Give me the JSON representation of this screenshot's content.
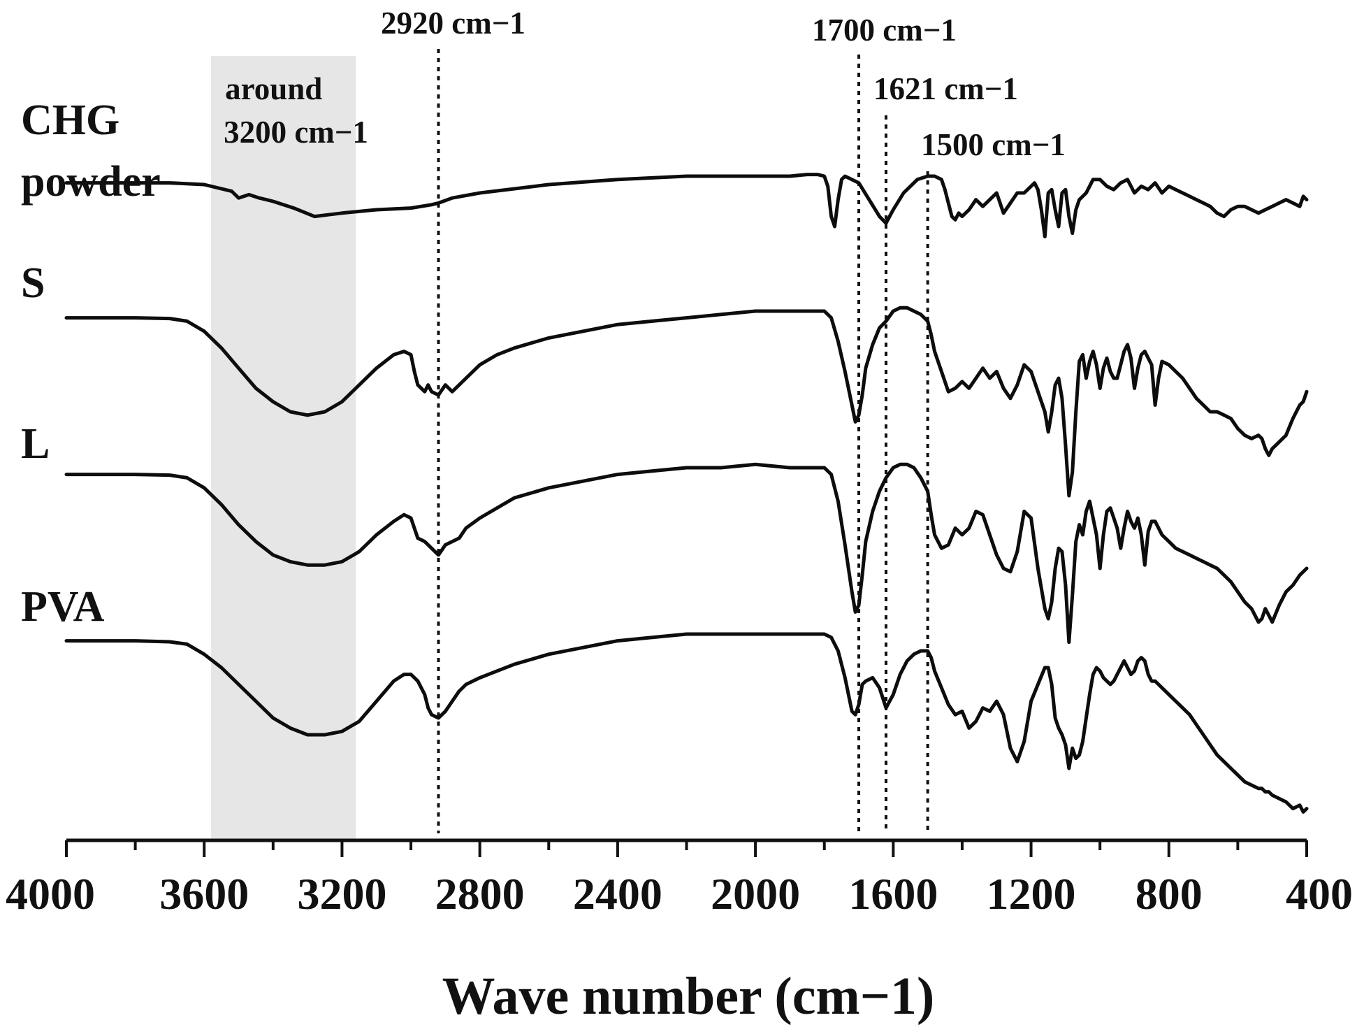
{
  "chart_data": {
    "type": "line",
    "title": "",
    "xlabel": "Wave number (cm−1)",
    "ylabel": "",
    "xlim": [
      4000,
      400
    ],
    "x_reversed": true,
    "xticks": [
      4000,
      3600,
      3200,
      2800,
      2400,
      2000,
      1600,
      1200,
      800,
      400
    ],
    "grid": false,
    "legend": "none (series labelled at left)",
    "highlight_band": {
      "from": 3580,
      "to": 3160,
      "label_line1": "around",
      "label_line2": "3200 cm−1"
    },
    "markers": [
      {
        "x": 2920,
        "label": "2920 cm−1"
      },
      {
        "x": 1700,
        "label": "1700 cm−1"
      },
      {
        "x": 1621,
        "label": "1621 cm−1"
      },
      {
        "x": 1500,
        "label": "1500 cm−1"
      }
    ],
    "series": [
      {
        "name": "CHG powder",
        "label_line1": "CHG",
        "label_line2": "powder",
        "x": [
          4000,
          3800,
          3700,
          3600,
          3520,
          3500,
          3470,
          3440,
          3400,
          3340,
          3280,
          3240,
          3200,
          3150,
          3100,
          3000,
          2940,
          2920,
          2880,
          2800,
          2600,
          2400,
          2200,
          2000,
          1900,
          1850,
          1820,
          1800,
          1790,
          1780,
          1770,
          1760,
          1750,
          1740,
          1700,
          1670,
          1640,
          1621,
          1600,
          1570,
          1530,
          1500,
          1480,
          1460,
          1450,
          1440,
          1430,
          1420,
          1410,
          1400,
          1380,
          1360,
          1340,
          1320,
          1300,
          1280,
          1260,
          1240,
          1220,
          1200,
          1190,
          1180,
          1170,
          1160,
          1150,
          1140,
          1130,
          1120,
          1110,
          1100,
          1090,
          1080,
          1070,
          1060,
          1040,
          1020,
          1000,
          980,
          960,
          940,
          920,
          900,
          880,
          860,
          840,
          820,
          800,
          780,
          760,
          740,
          720,
          700,
          680,
          660,
          640,
          620,
          600,
          580,
          560,
          540,
          520,
          500,
          480,
          460,
          440,
          420,
          410,
          400
        ],
        "y": [
          0.08,
          0.08,
          0.08,
          0.075,
          0.055,
          0.035,
          0.045,
          0.035,
          0.025,
          0.005,
          -0.02,
          -0.015,
          -0.01,
          -0.005,
          0.0,
          0.005,
          0.015,
          0.02,
          0.035,
          0.05,
          0.075,
          0.09,
          0.1,
          0.1,
          0.1,
          0.105,
          0.105,
          0.1,
          0.07,
          -0.02,
          -0.05,
          0.03,
          0.09,
          0.1,
          0.08,
          0.03,
          -0.02,
          -0.04,
          0.0,
          0.05,
          0.09,
          0.1,
          0.1,
          0.09,
          0.06,
          0.02,
          -0.02,
          -0.03,
          -0.01,
          -0.02,
          0.0,
          0.03,
          0.01,
          0.03,
          0.05,
          -0.01,
          0.02,
          0.05,
          0.05,
          0.07,
          0.08,
          0.06,
          0.0,
          -0.08,
          0.05,
          0.06,
          0.0,
          -0.05,
          0.05,
          0.06,
          -0.02,
          -0.07,
          0.0,
          0.03,
          0.05,
          0.09,
          0.09,
          0.07,
          0.06,
          0.08,
          0.09,
          0.05,
          0.07,
          0.06,
          0.08,
          0.05,
          0.07,
          0.06,
          0.05,
          0.04,
          0.03,
          0.02,
          0.01,
          -0.01,
          -0.02,
          0.0,
          0.01,
          0.01,
          0.0,
          -0.01,
          0.0,
          0.01,
          0.02,
          0.03,
          0.02,
          0.01,
          0.04,
          0.03
        ]
      },
      {
        "name": "S",
        "label_line1": "S",
        "label_line2": "",
        "x": [
          4000,
          3800,
          3700,
          3650,
          3600,
          3550,
          3500,
          3450,
          3400,
          3350,
          3300,
          3250,
          3200,
          3150,
          3100,
          3050,
          3020,
          3000,
          2990,
          2980,
          2960,
          2950,
          2940,
          2920,
          2900,
          2880,
          2860,
          2840,
          2800,
          2750,
          2700,
          2600,
          2500,
          2400,
          2300,
          2200,
          2100,
          2000,
          1900,
          1850,
          1800,
          1780,
          1760,
          1740,
          1720,
          1710,
          1700,
          1690,
          1680,
          1660,
          1640,
          1621,
          1600,
          1580,
          1560,
          1540,
          1520,
          1500,
          1490,
          1480,
          1460,
          1440,
          1420,
          1400,
          1380,
          1360,
          1340,
          1320,
          1300,
          1280,
          1260,
          1240,
          1220,
          1200,
          1180,
          1160,
          1150,
          1140,
          1130,
          1120,
          1110,
          1100,
          1090,
          1080,
          1070,
          1060,
          1050,
          1040,
          1030,
          1020,
          1010,
          1000,
          990,
          980,
          970,
          960,
          950,
          940,
          930,
          920,
          910,
          900,
          890,
          880,
          870,
          860,
          850,
          840,
          830,
          820,
          800,
          780,
          760,
          740,
          720,
          700,
          680,
          660,
          640,
          620,
          600,
          580,
          560,
          540,
          530,
          520,
          510,
          500,
          480,
          460,
          440,
          420,
          410,
          400
        ],
        "y": [
          0.08,
          0.08,
          0.078,
          0.07,
          0.04,
          -0.01,
          -0.07,
          -0.13,
          -0.17,
          -0.2,
          -0.21,
          -0.2,
          -0.17,
          -0.12,
          -0.07,
          -0.03,
          -0.02,
          -0.03,
          -0.08,
          -0.12,
          -0.14,
          -0.12,
          -0.14,
          -0.15,
          -0.12,
          -0.14,
          -0.12,
          -0.1,
          -0.06,
          -0.03,
          -0.01,
          0.02,
          0.04,
          0.06,
          0.07,
          0.08,
          0.09,
          0.1,
          0.1,
          0.1,
          0.1,
          0.08,
          0.01,
          -0.08,
          -0.18,
          -0.23,
          -0.21,
          -0.15,
          -0.07,
          0.0,
          0.05,
          0.07,
          0.1,
          0.11,
          0.11,
          0.1,
          0.09,
          0.07,
          0.03,
          -0.02,
          -0.08,
          -0.14,
          -0.13,
          -0.11,
          -0.13,
          -0.1,
          -0.07,
          -0.1,
          -0.08,
          -0.13,
          -0.16,
          -0.12,
          -0.06,
          -0.08,
          -0.14,
          -0.2,
          -0.26,
          -0.2,
          -0.12,
          -0.1,
          -0.16,
          -0.3,
          -0.45,
          -0.38,
          -0.2,
          -0.05,
          -0.03,
          -0.1,
          -0.05,
          -0.02,
          -0.06,
          -0.13,
          -0.07,
          -0.04,
          -0.08,
          -0.1,
          -0.1,
          -0.06,
          -0.02,
          0.0,
          -0.04,
          -0.13,
          -0.07,
          -0.03,
          -0.02,
          -0.04,
          -0.06,
          -0.18,
          -0.1,
          -0.05,
          -0.06,
          -0.08,
          -0.1,
          -0.13,
          -0.16,
          -0.18,
          -0.2,
          -0.2,
          -0.21,
          -0.22,
          -0.25,
          -0.27,
          -0.28,
          -0.27,
          -0.28,
          -0.31,
          -0.33,
          -0.31,
          -0.29,
          -0.27,
          -0.22,
          -0.18,
          -0.17,
          -0.14
        ]
      },
      {
        "name": "L",
        "label_line1": "L",
        "label_line2": "",
        "x": [
          4000,
          3800,
          3700,
          3650,
          3600,
          3550,
          3500,
          3450,
          3400,
          3350,
          3300,
          3250,
          3200,
          3150,
          3100,
          3050,
          3020,
          3000,
          2990,
          2980,
          2960,
          2950,
          2940,
          2920,
          2900,
          2880,
          2860,
          2840,
          2800,
          2750,
          2700,
          2600,
          2500,
          2400,
          2300,
          2200,
          2100,
          2000,
          1900,
          1850,
          1800,
          1780,
          1760,
          1740,
          1720,
          1710,
          1700,
          1690,
          1680,
          1660,
          1640,
          1621,
          1600,
          1580,
          1560,
          1540,
          1520,
          1500,
          1490,
          1480,
          1460,
          1440,
          1420,
          1400,
          1380,
          1360,
          1340,
          1320,
          1300,
          1280,
          1260,
          1240,
          1220,
          1200,
          1180,
          1160,
          1150,
          1140,
          1130,
          1120,
          1110,
          1100,
          1090,
          1080,
          1070,
          1060,
          1050,
          1040,
          1030,
          1020,
          1010,
          1000,
          990,
          980,
          970,
          960,
          950,
          940,
          930,
          920,
          910,
          900,
          890,
          880,
          870,
          860,
          850,
          840,
          830,
          820,
          800,
          780,
          760,
          740,
          720,
          700,
          680,
          660,
          640,
          620,
          600,
          580,
          560,
          540,
          530,
          520,
          510,
          500,
          480,
          460,
          440,
          420,
          410,
          400
        ],
        "y": [
          0.08,
          0.08,
          0.078,
          0.07,
          0.04,
          -0.01,
          -0.07,
          -0.12,
          -0.16,
          -0.18,
          -0.19,
          -0.19,
          -0.18,
          -0.15,
          -0.1,
          -0.06,
          -0.04,
          -0.05,
          -0.08,
          -0.11,
          -0.12,
          -0.13,
          -0.14,
          -0.16,
          -0.13,
          -0.12,
          -0.11,
          -0.08,
          -0.05,
          -0.02,
          0.01,
          0.04,
          0.06,
          0.08,
          0.09,
          0.1,
          0.1,
          0.11,
          0.1,
          0.1,
          0.1,
          0.08,
          0.0,
          -0.13,
          -0.27,
          -0.33,
          -0.31,
          -0.22,
          -0.12,
          -0.03,
          0.03,
          0.07,
          0.1,
          0.11,
          0.11,
          0.1,
          0.07,
          0.03,
          -0.04,
          -0.1,
          -0.14,
          -0.13,
          -0.08,
          -0.1,
          -0.08,
          -0.03,
          -0.04,
          -0.1,
          -0.16,
          -0.2,
          -0.21,
          -0.15,
          -0.03,
          -0.05,
          -0.2,
          -0.32,
          -0.35,
          -0.3,
          -0.2,
          -0.14,
          -0.15,
          -0.25,
          -0.42,
          -0.28,
          -0.12,
          -0.07,
          -0.1,
          -0.03,
          0.0,
          -0.05,
          -0.1,
          -0.2,
          -0.1,
          -0.03,
          -0.02,
          -0.05,
          -0.08,
          -0.14,
          -0.08,
          -0.03,
          -0.06,
          -0.08,
          -0.05,
          -0.1,
          -0.19,
          -0.09,
          -0.06,
          -0.06,
          -0.08,
          -0.1,
          -0.12,
          -0.14,
          -0.15,
          -0.16,
          -0.17,
          -0.18,
          -0.19,
          -0.2,
          -0.22,
          -0.24,
          -0.27,
          -0.3,
          -0.32,
          -0.36,
          -0.35,
          -0.32,
          -0.34,
          -0.36,
          -0.31,
          -0.27,
          -0.25,
          -0.22,
          -0.21,
          -0.2
        ]
      },
      {
        "name": "PVA",
        "label_line1": "PVA",
        "label_line2": "",
        "x": [
          4000,
          3800,
          3700,
          3650,
          3600,
          3550,
          3500,
          3450,
          3400,
          3350,
          3300,
          3250,
          3200,
          3150,
          3100,
          3050,
          3020,
          3000,
          2990,
          2980,
          2960,
          2950,
          2940,
          2920,
          2900,
          2880,
          2860,
          2840,
          2800,
          2750,
          2700,
          2600,
          2500,
          2400,
          2300,
          2200,
          2100,
          2000,
          1900,
          1850,
          1800,
          1780,
          1760,
          1740,
          1720,
          1710,
          1700,
          1690,
          1680,
          1660,
          1640,
          1621,
          1600,
          1580,
          1560,
          1540,
          1520,
          1500,
          1490,
          1480,
          1460,
          1440,
          1420,
          1400,
          1380,
          1360,
          1340,
          1320,
          1300,
          1280,
          1260,
          1240,
          1220,
          1200,
          1180,
          1160,
          1150,
          1140,
          1130,
          1120,
          1110,
          1100,
          1090,
          1080,
          1070,
          1060,
          1050,
          1040,
          1030,
          1020,
          1010,
          1000,
          990,
          980,
          970,
          960,
          950,
          940,
          930,
          920,
          910,
          900,
          890,
          880,
          870,
          860,
          850,
          840,
          830,
          820,
          800,
          780,
          760,
          740,
          720,
          700,
          680,
          660,
          640,
          620,
          600,
          580,
          560,
          540,
          530,
          520,
          510,
          500,
          480,
          460,
          440,
          420,
          410,
          400
        ],
        "y": [
          0.08,
          0.08,
          0.077,
          0.07,
          0.04,
          0.0,
          -0.05,
          -0.1,
          -0.15,
          -0.18,
          -0.2,
          -0.2,
          -0.19,
          -0.16,
          -0.1,
          -0.04,
          -0.02,
          -0.02,
          -0.03,
          -0.04,
          -0.08,
          -0.12,
          -0.14,
          -0.15,
          -0.13,
          -0.1,
          -0.07,
          -0.05,
          -0.03,
          -0.01,
          0.01,
          0.04,
          0.06,
          0.08,
          0.09,
          0.1,
          0.1,
          0.1,
          0.1,
          0.1,
          0.1,
          0.09,
          0.05,
          -0.03,
          -0.13,
          -0.14,
          -0.11,
          -0.05,
          -0.04,
          -0.03,
          -0.06,
          -0.12,
          -0.08,
          -0.02,
          0.02,
          0.04,
          0.05,
          0.05,
          0.03,
          -0.01,
          -0.06,
          -0.11,
          -0.14,
          -0.13,
          -0.18,
          -0.16,
          -0.12,
          -0.13,
          -0.1,
          -0.14,
          -0.24,
          -0.28,
          -0.22,
          -0.1,
          -0.05,
          0.0,
          0.0,
          -0.05,
          -0.15,
          -0.18,
          -0.2,
          -0.23,
          -0.3,
          -0.24,
          -0.27,
          -0.26,
          -0.22,
          -0.15,
          -0.08,
          -0.02,
          0.0,
          -0.01,
          -0.03,
          -0.04,
          -0.05,
          -0.04,
          -0.02,
          0.0,
          0.02,
          0.0,
          -0.02,
          -0.01,
          0.02,
          0.03,
          0.02,
          -0.02,
          -0.04,
          -0.04,
          -0.05,
          -0.06,
          -0.08,
          -0.1,
          -0.12,
          -0.14,
          -0.17,
          -0.2,
          -0.23,
          -0.26,
          -0.28,
          -0.3,
          -0.32,
          -0.34,
          -0.35,
          -0.36,
          -0.36,
          -0.37,
          -0.37,
          -0.38,
          -0.39,
          -0.4,
          -0.42,
          -0.41,
          -0.43,
          -0.42
        ]
      }
    ]
  }
}
